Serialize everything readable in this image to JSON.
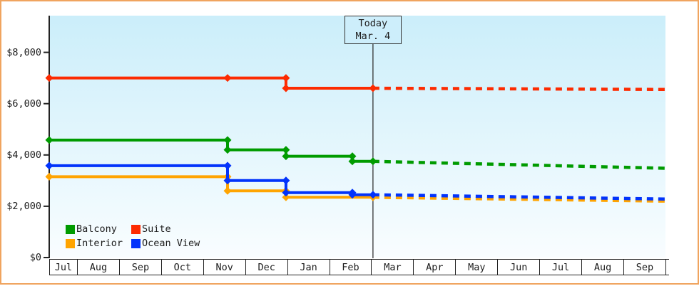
{
  "frame": {
    "border_color": "#f0a45f",
    "background": "#ffffff",
    "plot_gradient_top": "#cbeefa",
    "plot_gradient_bottom": "#f9fdff",
    "axis_color": "#222222",
    "today_line_color": "#333333",
    "text_color": "#1c1c1c"
  },
  "chart_data": {
    "type": "line",
    "style": "stepped price history with dotted future projection after today",
    "x_axis": {
      "tick_labels": [
        "Jul",
        "Aug",
        "Sep",
        "Oct",
        "Nov",
        "Dec",
        "Jan",
        "Feb",
        "Mar",
        "Apr",
        "May",
        "Jun",
        "Jul",
        "Aug",
        "Sep"
      ]
    },
    "y_axis": {
      "unit": "USD",
      "tick_labels": [
        "$8,000",
        "$6,000",
        "$4,000",
        "$2,000",
        "$0"
      ],
      "tick_values": [
        8000,
        6000,
        4000,
        2000,
        0
      ],
      "ylim": [
        0,
        9430
      ]
    },
    "today": {
      "line1": "Today",
      "line2": "Mar. 4",
      "m": 8.04
    },
    "series": [
      {
        "name": "Balcony",
        "color": "#009b00",
        "points": [
          {
            "m": 0,
            "v": 4580
          },
          {
            "m": 4.58,
            "v": 4580
          },
          {
            "m": 4.58,
            "v": 4200
          },
          {
            "m": 5.97,
            "v": 4200
          },
          {
            "m": 5.97,
            "v": 3950
          },
          {
            "m": 7.55,
            "v": 3950
          },
          {
            "m": 7.55,
            "v": 3750
          },
          {
            "m": 8.04,
            "v": 3750
          }
        ],
        "projection": {
          "m": 15,
          "v": 3480
        }
      },
      {
        "name": "Suite",
        "color": "#fd2b01",
        "points": [
          {
            "m": 0,
            "v": 7000
          },
          {
            "m": 4.58,
            "v": 7000
          },
          {
            "m": 5.97,
            "v": 7000
          },
          {
            "m": 5.97,
            "v": 6600
          },
          {
            "m": 8.04,
            "v": 6600
          }
        ],
        "projection": {
          "m": 15,
          "v": 6550
        }
      },
      {
        "name": "Interior",
        "color": "#ffa401",
        "points": [
          {
            "m": 0,
            "v": 3150
          },
          {
            "m": 4.58,
            "v": 3150
          },
          {
            "m": 4.58,
            "v": 2600
          },
          {
            "m": 5.97,
            "v": 2600
          },
          {
            "m": 5.97,
            "v": 2350
          },
          {
            "m": 8.04,
            "v": 2350
          }
        ],
        "projection": {
          "m": 15,
          "v": 2200
        }
      },
      {
        "name": "Ocean View",
        "color": "#0233fb",
        "points": [
          {
            "m": 0,
            "v": 3580
          },
          {
            "m": 4.58,
            "v": 3580
          },
          {
            "m": 4.58,
            "v": 3000
          },
          {
            "m": 5.97,
            "v": 3000
          },
          {
            "m": 5.97,
            "v": 2530
          },
          {
            "m": 7.55,
            "v": 2530
          },
          {
            "m": 7.55,
            "v": 2450
          },
          {
            "m": 8.04,
            "v": 2450
          }
        ],
        "projection": {
          "m": 15,
          "v": 2280
        }
      }
    ],
    "legend": {
      "order": [
        "Balcony",
        "Suite",
        "Interior",
        "Ocean View"
      ]
    }
  }
}
